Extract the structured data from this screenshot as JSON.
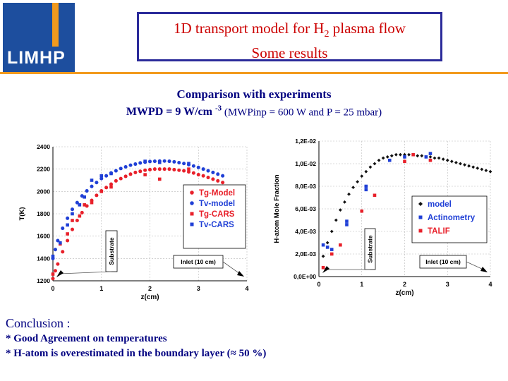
{
  "header": {
    "logo_text": "LIMHP",
    "title_line1_pre": "1D transport model for H",
    "title_line1_sub": "2",
    "title_line1_post": " plasma flow",
    "title_line2": "Some results"
  },
  "subtitle": "Comparison with experiments",
  "condition": {
    "mwpd_pre": "MWPD = 9 W/cm",
    "mwpd_sup": "-3",
    "extra": " (MWPinp = 600 W and P = 25 mbar)"
  },
  "conclusion": {
    "title": "Conclusion :",
    "items": [
      "* Good Agreement on temperatures",
      "* H-atom is overestimated in the boundary layer (≈ 50 %)"
    ]
  },
  "chart_data": [
    {
      "type": "scatter",
      "xlabel": "z(cm)",
      "ylabel": "T(K)",
      "xlim": [
        0,
        4
      ],
      "ylim": [
        1200,
        2400
      ],
      "xticks": [
        "0",
        "1",
        "2",
        "3",
        "4"
      ],
      "yticks": [
        "1200",
        "1400",
        "1600",
        "1800",
        "2000",
        "2200",
        "2400"
      ],
      "legend_position": "right",
      "annotations": [
        {
          "text": "Substrate",
          "orientation": "vertical"
        },
        {
          "text": "Inlet (10 cm)",
          "boxed": true
        }
      ],
      "series": [
        {
          "name": "Tg-Model",
          "marker": "circle",
          "color": "#e8202a",
          "x": [
            0.0,
            0.05,
            0.1,
            0.2,
            0.3,
            0.4,
            0.5,
            0.6,
            0.7,
            0.8,
            0.9,
            1.0,
            1.1,
            1.2,
            1.3,
            1.4,
            1.5,
            1.6,
            1.7,
            1.8,
            1.9,
            2.0,
            2.1,
            2.2,
            2.3,
            2.4,
            2.5,
            2.6,
            2.7,
            2.8,
            2.9,
            3.0,
            3.1,
            3.2,
            3.3,
            3.4,
            3.5
          ],
          "y": [
            1220,
            1290,
            1350,
            1460,
            1560,
            1660,
            1740,
            1810,
            1870,
            1920,
            1965,
            2005,
            2035,
            2065,
            2095,
            2115,
            2135,
            2155,
            2170,
            2180,
            2190,
            2195,
            2200,
            2200,
            2200,
            2200,
            2195,
            2190,
            2185,
            2175,
            2165,
            2150,
            2140,
            2125,
            2110,
            2095,
            2080
          ]
        },
        {
          "name": "Tv-model",
          "marker": "circle",
          "color": "#1f3fd6",
          "x": [
            0.0,
            0.05,
            0.1,
            0.2,
            0.3,
            0.4,
            0.5,
            0.6,
            0.7,
            0.8,
            0.9,
            1.0,
            1.1,
            1.2,
            1.3,
            1.4,
            1.5,
            1.6,
            1.7,
            1.8,
            1.9,
            2.0,
            2.1,
            2.2,
            2.3,
            2.4,
            2.5,
            2.6,
            2.7,
            2.8,
            2.9,
            3.0,
            3.1,
            3.2,
            3.3,
            3.4,
            3.5
          ],
          "y": [
            1400,
            1480,
            1560,
            1670,
            1760,
            1840,
            1900,
            1960,
            2005,
            2045,
            2080,
            2115,
            2140,
            2165,
            2185,
            2205,
            2220,
            2235,
            2245,
            2255,
            2262,
            2268,
            2270,
            2272,
            2272,
            2270,
            2265,
            2258,
            2250,
            2240,
            2228,
            2215,
            2200,
            2185,
            2170,
            2155,
            2140
          ]
        },
        {
          "name": "Tg-CARS",
          "marker": "square",
          "color": "#e8202a",
          "x": [
            0.0,
            0.15,
            0.3,
            0.4,
            0.55,
            0.65,
            0.8,
            1.0,
            1.2,
            1.9,
            2.2,
            2.8
          ],
          "y": [
            1260,
            1530,
            1620,
            1740,
            1780,
            1880,
            1900,
            2000,
            2040,
            2150,
            2110,
            2200
          ]
        },
        {
          "name": "Tv-CARS",
          "marker": "square",
          "color": "#1f3fd6",
          "x": [
            0.0,
            0.15,
            0.3,
            0.4,
            0.55,
            0.65,
            0.8,
            1.0,
            1.2,
            1.9,
            2.2,
            2.8
          ],
          "y": [
            1420,
            1540,
            1700,
            1800,
            1880,
            1950,
            2100,
            2140,
            2160,
            2270,
            2260,
            2250
          ]
        }
      ]
    },
    {
      "type": "scatter",
      "xlabel": "z(cm)",
      "ylabel": "H-atom Mole Fraction",
      "xlim": [
        0,
        4
      ],
      "ylim": [
        0,
        0.012
      ],
      "xticks": [
        "0",
        "1",
        "2",
        "3",
        "4"
      ],
      "yticks": [
        "0,0E+00",
        "2,0E-03",
        "4,0E-03",
        "6,0E-03",
        "8,0E-03",
        "1,0E-02",
        "1,2E-02"
      ],
      "legend_position": "right",
      "annotations": [
        {
          "text": "Substrate",
          "orientation": "vertical"
        },
        {
          "text": "Inlet (10 cm)",
          "boxed": true
        }
      ],
      "series": [
        {
          "name": "model",
          "marker": "diamond",
          "color": "#111111",
          "x": [
            0.1,
            0.2,
            0.3,
            0.4,
            0.5,
            0.6,
            0.7,
            0.8,
            0.9,
            1.0,
            1.1,
            1.2,
            1.3,
            1.4,
            1.5,
            1.6,
            1.7,
            1.8,
            1.9,
            2.0,
            2.1,
            2.2,
            2.3,
            2.4,
            2.5,
            2.6,
            2.7,
            2.8,
            2.9,
            3.0,
            3.1,
            3.2,
            3.3,
            3.4,
            3.5,
            3.6,
            3.7,
            3.8,
            3.9,
            4.0
          ],
          "y": [
            0.0018,
            0.003,
            0.004,
            0.005,
            0.0059,
            0.0066,
            0.0073,
            0.0079,
            0.0084,
            0.0089,
            0.0093,
            0.0097,
            0.01,
            0.0103,
            0.0105,
            0.0106,
            0.0107,
            0.0108,
            0.0108,
            0.0108,
            0.0108,
            0.0108,
            0.0107,
            0.0107,
            0.0106,
            0.0106,
            0.0105,
            0.0105,
            0.0104,
            0.0103,
            0.0102,
            0.0101,
            0.01,
            0.0099,
            0.0098,
            0.0097,
            0.0096,
            0.0095,
            0.0094,
            0.0093
          ]
        },
        {
          "name": "Actinometry",
          "marker": "square",
          "color": "#1f3fd6",
          "x": [
            0.1,
            0.2,
            0.3,
            0.65,
            0.65,
            1.1,
            1.1,
            1.65,
            2.0,
            2.5,
            2.6
          ],
          "y": [
            0.0028,
            0.0026,
            0.0024,
            0.0049,
            0.0046,
            0.008,
            0.0077,
            0.0103,
            0.0106,
            0.0106,
            0.0109
          ]
        },
        {
          "name": "TALIF",
          "marker": "square",
          "color": "#e8202a",
          "x": [
            0.1,
            0.3,
            0.5,
            1.0,
            1.3,
            2.0,
            2.2,
            2.6
          ],
          "y": [
            0.0008,
            0.002,
            0.0028,
            0.0058,
            0.0072,
            0.0102,
            0.0108,
            0.0103
          ]
        }
      ]
    }
  ]
}
